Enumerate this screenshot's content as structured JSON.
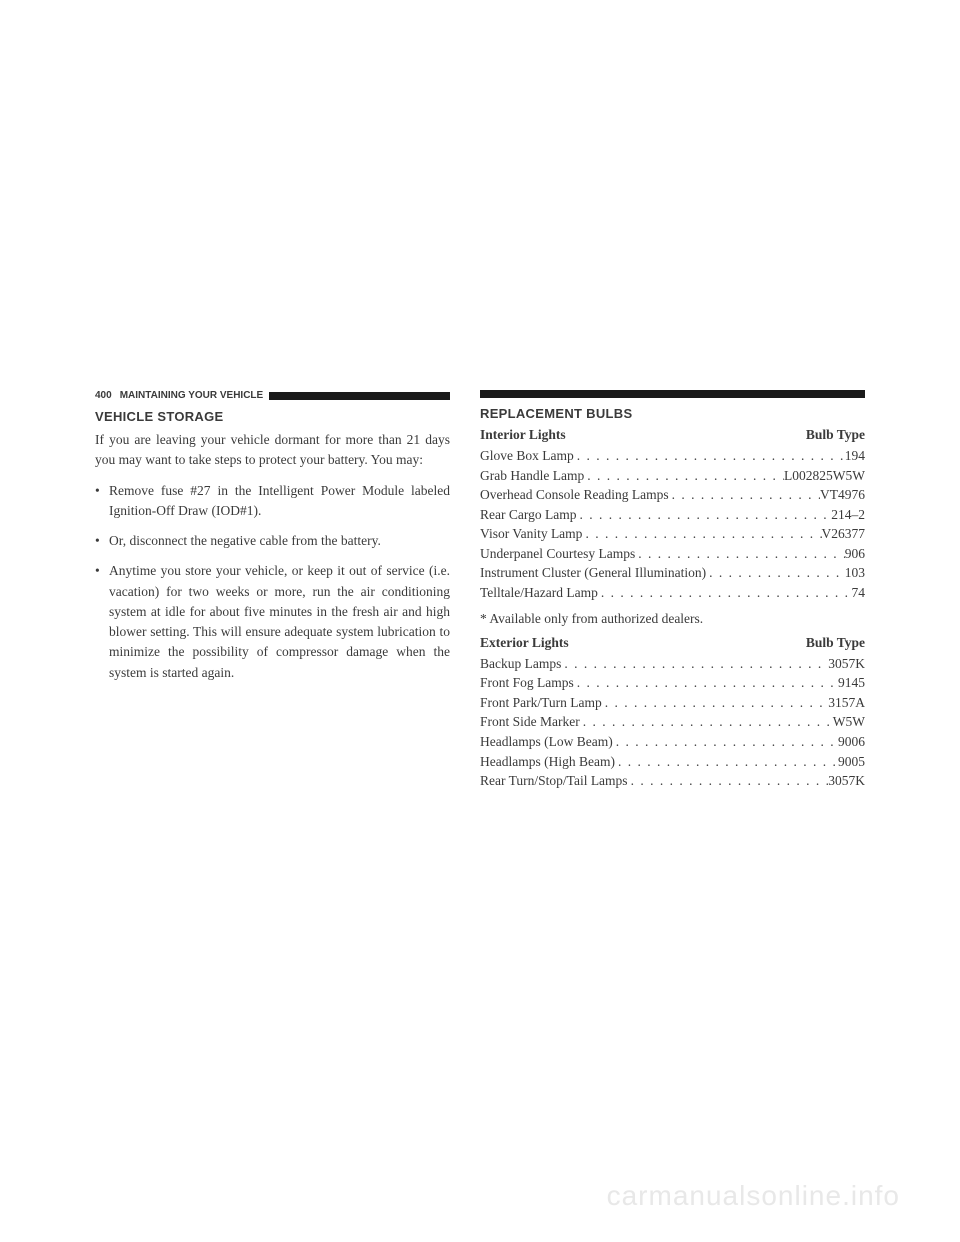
{
  "header": {
    "page_number": "400",
    "section": "MAINTAINING YOUR VEHICLE"
  },
  "left_column": {
    "heading": "VEHICLE STORAGE",
    "intro": "If you are leaving your vehicle dormant for more than 21 days you may want to take steps to protect your battery. You may:",
    "bullets": [
      "Remove fuse #27 in the Intelligent Power Module labeled Ignition-Off Draw (IOD#1).",
      "Or, disconnect the negative cable from the battery.",
      "Anytime you store your vehicle, or keep it out of service (i.e. vacation) for two weeks or more, run the air conditioning system at idle for about five minutes in the fresh air and high blower setting. This will ensure adequate system lubrication to minimize the possibility of compressor damage when the system is started again."
    ]
  },
  "right_column": {
    "heading": "REPLACEMENT BULBS",
    "interior": {
      "header_left": "Interior Lights",
      "header_right": "Bulb Type",
      "rows": [
        {
          "label": "Glove Box Lamp",
          "value": "194"
        },
        {
          "label": "Grab Handle Lamp",
          "value": "L002825W5W"
        },
        {
          "label": "Overhead Console Reading Lamps",
          "value": "VT4976"
        },
        {
          "label": "Rear Cargo Lamp",
          "value": "214–2"
        },
        {
          "label": "Visor Vanity Lamp",
          "value": "V26377"
        },
        {
          "label": "Underpanel Courtesy Lamps",
          "value": "906"
        },
        {
          "label": "Instrument Cluster (General Illumination)",
          "value": "103"
        },
        {
          "label": "Telltale/Hazard Lamp",
          "value": "74"
        }
      ]
    },
    "note": "* Available only from authorized dealers.",
    "exterior": {
      "header_left": "Exterior Lights",
      "header_right": "Bulb Type",
      "rows": [
        {
          "label": "Backup Lamps",
          "value": "3057K"
        },
        {
          "label": "Front Fog Lamps",
          "value": "9145"
        },
        {
          "label": "Front Park/Turn Lamp",
          "value": "3157A"
        },
        {
          "label": "Front Side Marker",
          "value": "W5W"
        },
        {
          "label": "Headlamps (Low Beam)",
          "value": "9006"
        },
        {
          "label": "Headlamps (High Beam)",
          "value": "9005"
        },
        {
          "label": "Rear Turn/Stop/Tail Lamps",
          "value": "3057K"
        }
      ]
    }
  },
  "watermark": "carmanualsonline.info"
}
